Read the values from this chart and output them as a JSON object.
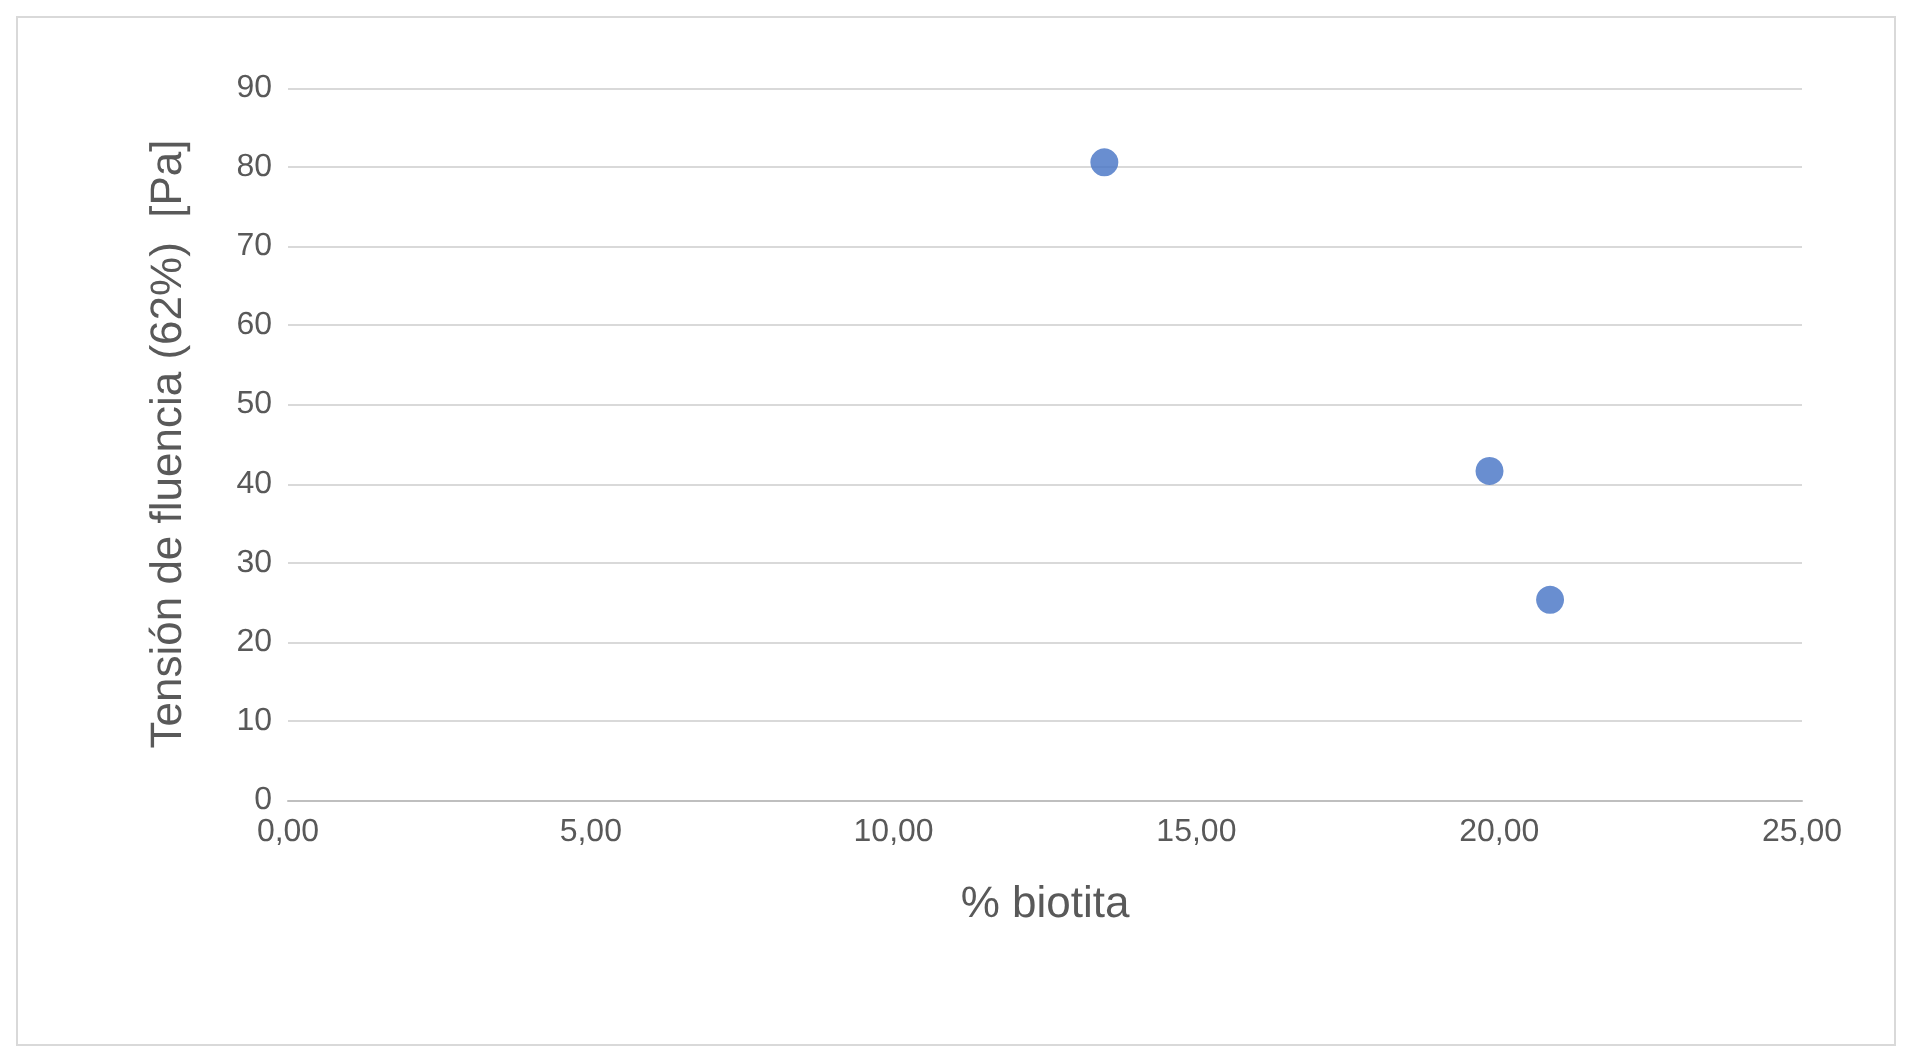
{
  "chart_data": {
    "type": "scatter",
    "xlabel": "% biotita",
    "ylabel": "Tensión de fluencia (62%)  [Pa]",
    "x": [
      13.48,
      19.84,
      20.84
    ],
    "series": [
      {
        "color": "#4472c4",
        "values": [
          80.6,
          41.6,
          25.3
        ]
      }
    ],
    "xlim": [
      0,
      25
    ],
    "xticks": [
      {
        "value": 0,
        "label": "0,00"
      },
      {
        "value": 5,
        "label": "5,00"
      },
      {
        "value": 10,
        "label": "10,00"
      },
      {
        "value": 15,
        "label": "15,00"
      },
      {
        "value": 20,
        "label": "20,00"
      },
      {
        "value": 25,
        "label": "25,00"
      }
    ],
    "ylim": [
      0,
      90
    ],
    "yticks": [
      0,
      10,
      20,
      30,
      40,
      50,
      60,
      70,
      80,
      90
    ],
    "grid": "y",
    "marker": "circle"
  }
}
